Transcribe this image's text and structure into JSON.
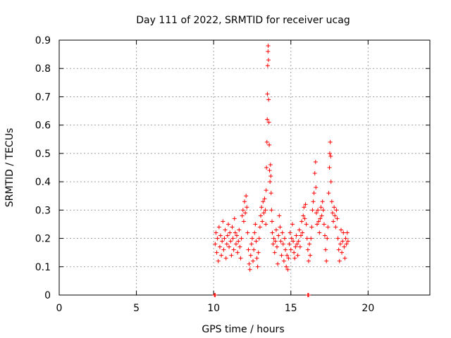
{
  "chart_data": {
    "type": "scatter",
    "title": "Day 111 of 2022, SRMTID for receiver ucag",
    "xlabel": "GPS time / hours",
    "ylabel": "SRMTID / TECUs",
    "xlim": [
      0,
      24
    ],
    "ylim": [
      0,
      0.9
    ],
    "xticks": [
      0,
      5,
      10,
      15,
      20
    ],
    "xtick_labels": [
      "0",
      "5",
      "10",
      "15",
      "20"
    ],
    "yticks": [
      0,
      0.1,
      0.2,
      0.3,
      0.4,
      0.5,
      0.6,
      0.7,
      0.8,
      0.9
    ],
    "ytick_labels": [
      "0",
      "0.1",
      "0.2",
      "0.3",
      "0.4",
      "0.5",
      "0.6",
      "0.7",
      "0.8",
      "0.9"
    ],
    "grid": true,
    "marker": "+",
    "color": "#ff0000",
    "series": [
      {
        "name": "SRMTID",
        "points": [
          [
            10.05,
            0.0
          ],
          [
            10.1,
            0.0
          ],
          [
            16.1,
            0.0
          ],
          [
            16.15,
            0.0
          ],
          [
            10.1,
            0.18
          ],
          [
            10.15,
            0.22
          ],
          [
            10.2,
            0.15
          ],
          [
            10.25,
            0.2
          ],
          [
            10.3,
            0.12
          ],
          [
            10.35,
            0.24
          ],
          [
            10.4,
            0.17
          ],
          [
            10.45,
            0.21
          ],
          [
            10.5,
            0.14
          ],
          [
            10.55,
            0.19
          ],
          [
            10.6,
            0.26
          ],
          [
            10.65,
            0.16
          ],
          [
            10.7,
            0.2
          ],
          [
            10.75,
            0.23
          ],
          [
            10.8,
            0.13
          ],
          [
            10.85,
            0.18
          ],
          [
            10.9,
            0.21
          ],
          [
            10.95,
            0.25
          ],
          [
            11.0,
            0.17
          ],
          [
            11.05,
            0.22
          ],
          [
            11.1,
            0.19
          ],
          [
            11.15,
            0.14
          ],
          [
            11.2,
            0.24
          ],
          [
            11.25,
            0.2
          ],
          [
            11.3,
            0.16
          ],
          [
            11.35,
            0.27
          ],
          [
            11.4,
            0.22
          ],
          [
            11.45,
            0.18
          ],
          [
            11.5,
            0.21
          ],
          [
            11.55,
            0.15
          ],
          [
            11.6,
            0.19
          ],
          [
            11.65,
            0.23
          ],
          [
            11.7,
            0.17
          ],
          [
            11.75,
            0.13
          ],
          [
            11.8,
            0.2
          ],
          [
            11.85,
            0.28
          ],
          [
            11.9,
            0.3
          ],
          [
            11.95,
            0.26
          ],
          [
            12.0,
            0.33
          ],
          [
            12.05,
            0.29
          ],
          [
            12.1,
            0.35
          ],
          [
            12.15,
            0.31
          ],
          [
            12.2,
            0.22
          ],
          [
            12.25,
            0.16
          ],
          [
            12.3,
            0.11
          ],
          [
            12.35,
            0.09
          ],
          [
            12.4,
            0.14
          ],
          [
            12.45,
            0.18
          ],
          [
            12.5,
            0.2
          ],
          [
            12.55,
            0.12
          ],
          [
            12.6,
            0.16
          ],
          [
            12.65,
            0.22
          ],
          [
            12.7,
            0.25
          ],
          [
            12.75,
            0.19
          ],
          [
            12.8,
            0.13
          ],
          [
            12.85,
            0.1
          ],
          [
            12.9,
            0.15
          ],
          [
            12.95,
            0.2
          ],
          [
            13.0,
            0.24
          ],
          [
            13.05,
            0.28
          ],
          [
            13.1,
            0.31
          ],
          [
            13.15,
            0.26
          ],
          [
            13.2,
            0.33
          ],
          [
            13.25,
            0.29
          ],
          [
            13.3,
            0.34
          ],
          [
            13.35,
            0.3
          ],
          [
            13.38,
            0.25
          ],
          [
            13.4,
            0.37
          ],
          [
            13.42,
            0.45
          ],
          [
            13.45,
            0.54
          ],
          [
            13.47,
            0.62
          ],
          [
            13.48,
            0.71
          ],
          [
            13.5,
            0.81
          ],
          [
            13.52,
            0.86
          ],
          [
            13.53,
            0.88
          ],
          [
            13.55,
            0.83
          ],
          [
            13.56,
            0.69
          ],
          [
            13.58,
            0.61
          ],
          [
            13.6,
            0.53
          ],
          [
            13.62,
            0.44
          ],
          [
            13.65,
            0.4
          ],
          [
            13.68,
            0.46
          ],
          [
            13.7,
            0.42
          ],
          [
            13.72,
            0.36
          ],
          [
            13.75,
            0.3
          ],
          [
            13.78,
            0.26
          ],
          [
            13.8,
            0.22
          ],
          [
            13.85,
            0.18
          ],
          [
            13.9,
            0.2
          ],
          [
            13.95,
            0.15
          ],
          [
            14.0,
            0.19
          ],
          [
            14.05,
            0.23
          ],
          [
            14.1,
            0.17
          ],
          [
            14.15,
            0.11
          ],
          [
            14.2,
            0.21
          ],
          [
            14.25,
            0.28
          ],
          [
            14.3,
            0.24
          ],
          [
            14.35,
            0.19
          ],
          [
            14.4,
            0.14
          ],
          [
            14.45,
            0.22
          ],
          [
            14.5,
            0.18
          ],
          [
            14.55,
            0.12
          ],
          [
            14.6,
            0.2
          ],
          [
            14.65,
            0.16
          ],
          [
            14.7,
            0.1
          ],
          [
            14.75,
            0.14
          ],
          [
            14.8,
            0.09
          ],
          [
            14.85,
            0.13
          ],
          [
            14.9,
            0.18
          ],
          [
            14.95,
            0.22
          ],
          [
            15.0,
            0.16
          ],
          [
            15.05,
            0.2
          ],
          [
            15.1,
            0.25
          ],
          [
            15.15,
            0.19
          ],
          [
            15.2,
            0.15
          ],
          [
            15.25,
            0.13
          ],
          [
            15.3,
            0.17
          ],
          [
            15.35,
            0.21
          ],
          [
            15.4,
            0.18
          ],
          [
            15.45,
            0.14
          ],
          [
            15.5,
            0.19
          ],
          [
            15.55,
            0.23
          ],
          [
            15.6,
            0.17
          ],
          [
            15.65,
            0.21
          ],
          [
            15.7,
            0.26
          ],
          [
            15.75,
            0.22
          ],
          [
            15.8,
            0.28
          ],
          [
            15.85,
            0.31
          ],
          [
            15.9,
            0.27
          ],
          [
            15.95,
            0.32
          ],
          [
            16.0,
            0.25
          ],
          [
            16.05,
            0.2
          ],
          [
            16.1,
            0.16
          ],
          [
            16.15,
            0.12
          ],
          [
            16.2,
            0.18
          ],
          [
            16.25,
            0.14
          ],
          [
            16.3,
            0.2
          ],
          [
            16.35,
            0.24
          ],
          [
            16.4,
            0.3
          ],
          [
            16.45,
            0.33
          ],
          [
            16.5,
            0.36
          ],
          [
            16.55,
            0.43
          ],
          [
            16.6,
            0.47
          ],
          [
            16.62,
            0.38
          ],
          [
            16.65,
            0.29
          ],
          [
            16.7,
            0.25
          ],
          [
            16.75,
            0.3
          ],
          [
            16.8,
            0.26
          ],
          [
            16.85,
            0.22
          ],
          [
            16.9,
            0.27
          ],
          [
            16.95,
            0.31
          ],
          [
            17.0,
            0.28
          ],
          [
            17.05,
            0.33
          ],
          [
            17.1,
            0.3
          ],
          [
            17.15,
            0.25
          ],
          [
            17.2,
            0.21
          ],
          [
            17.25,
            0.16
          ],
          [
            17.3,
            0.12
          ],
          [
            17.35,
            0.2
          ],
          [
            17.4,
            0.24
          ],
          [
            17.45,
            0.36
          ],
          [
            17.5,
            0.45
          ],
          [
            17.52,
            0.5
          ],
          [
            17.55,
            0.54
          ],
          [
            17.58,
            0.49
          ],
          [
            17.6,
            0.4
          ],
          [
            17.65,
            0.33
          ],
          [
            17.7,
            0.29
          ],
          [
            17.75,
            0.26
          ],
          [
            17.8,
            0.31
          ],
          [
            17.85,
            0.28
          ],
          [
            17.9,
            0.24
          ],
          [
            17.95,
            0.3
          ],
          [
            18.0,
            0.27
          ],
          [
            18.05,
            0.2
          ],
          [
            18.1,
            0.16
          ],
          [
            18.15,
            0.12
          ],
          [
            18.2,
            0.18
          ],
          [
            18.25,
            0.23
          ],
          [
            18.3,
            0.15
          ],
          [
            18.35,
            0.19
          ],
          [
            18.4,
            0.22
          ],
          [
            18.45,
            0.17
          ],
          [
            18.5,
            0.13
          ],
          [
            18.55,
            0.2
          ],
          [
            18.6,
            0.18
          ],
          [
            18.65,
            0.22
          ],
          [
            18.7,
            0.19
          ]
        ]
      }
    ]
  }
}
